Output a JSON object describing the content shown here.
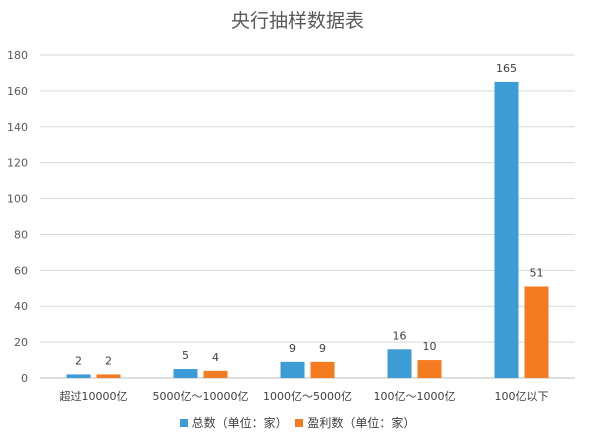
{
  "chart_data": {
    "type": "bar",
    "title": "央行抽样数据表",
    "categories": [
      "超过10000亿",
      "5000亿～10000亿",
      "1000亿～5000亿",
      "100亿～1000亿",
      "100亿以下"
    ],
    "series": [
      {
        "name": "总数（单位：家）",
        "color": "#3d9bd6",
        "values": [
          2,
          5,
          9,
          16,
          165
        ]
      },
      {
        "name": "盈利数（单位：家）",
        "color": "#f47b20",
        "values": [
          2,
          4,
          9,
          10,
          51
        ]
      }
    ],
    "ylim": [
      0,
      180
    ],
    "yticks": [
      0,
      20,
      40,
      60,
      80,
      100,
      120,
      140,
      160,
      180
    ],
    "grid": true,
    "legend_position": "bottom"
  }
}
